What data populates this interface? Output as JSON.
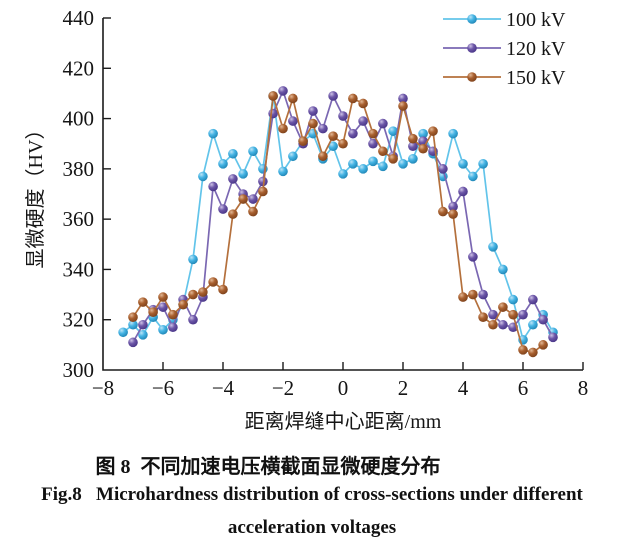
{
  "chart_data": {
    "type": "scatter",
    "title": "",
    "xlabel": "距离焊缝中心距离/mm",
    "ylabel": "显微硬度（HV）",
    "xlim": [
      -8,
      8
    ],
    "ylim": [
      300,
      440
    ],
    "xticks": [
      -8,
      -6,
      -4,
      -2,
      0,
      2,
      4,
      6,
      8
    ],
    "yticks": [
      300,
      320,
      340,
      360,
      380,
      400,
      420,
      440
    ],
    "grid": false,
    "axis_color": "#1a1a1a",
    "legend": {
      "position": "top-right",
      "entries": [
        "100 kV",
        "120 kV",
        "150 kV"
      ]
    },
    "series": [
      {
        "name": "100 kV",
        "colors": {
          "light": "#BCE4F6",
          "main": "#45B4E4",
          "dark": "#1E84B4",
          "line": "#62C4EA"
        },
        "x": [
          -7.33,
          -7,
          -6.67,
          -6.33,
          -6,
          -5.67,
          -5.33,
          -5,
          -4.67,
          -4.33,
          -4,
          -3.67,
          -3.33,
          -3,
          -2.67,
          -2.33,
          -2,
          -1.67,
          -1.33,
          -1,
          -0.67,
          -0.33,
          0,
          0.33,
          0.67,
          1,
          1.33,
          1.67,
          2,
          2.33,
          2.67,
          3,
          3.33,
          3.67,
          4,
          4.33,
          4.67,
          5,
          5.33,
          5.67,
          6,
          6.33,
          6.67,
          7
        ],
        "y": [
          315,
          318,
          314,
          321,
          316,
          320,
          326,
          344,
          377,
          394,
          382,
          386,
          378,
          387,
          380,
          409,
          379,
          385,
          391,
          394,
          384,
          389,
          378,
          382,
          380,
          383,
          381,
          395,
          382,
          384,
          394,
          386,
          377,
          394,
          382,
          377,
          382,
          349,
          340,
          328,
          312,
          318,
          322,
          315
        ]
      },
      {
        "name": "120 kV",
        "colors": {
          "light": "#CDC2E6",
          "main": "#6D57A8",
          "dark": "#473486",
          "line": "#7A67B2"
        },
        "x": [
          -7,
          -6.67,
          -6.33,
          -6,
          -5.67,
          -5.33,
          -5,
          -4.67,
          -4.33,
          -4,
          -3.67,
          -3.33,
          -3,
          -2.67,
          -2.33,
          -2,
          -1.67,
          -1.33,
          -1,
          -0.67,
          -0.33,
          0,
          0.33,
          0.67,
          1,
          1.33,
          1.67,
          2,
          2.33,
          2.67,
          3,
          3.33,
          3.67,
          4,
          4.33,
          4.67,
          5,
          5.33,
          5.67,
          6,
          6.33,
          6.67,
          7
        ],
        "y": [
          311,
          318,
          324,
          325,
          317,
          328,
          320,
          329,
          373,
          364,
          376,
          370,
          368,
          375,
          402,
          411,
          399,
          390,
          403,
          396,
          409,
          401,
          394,
          399,
          390,
          398,
          385,
          408,
          389,
          391,
          387,
          380,
          365,
          371,
          345,
          330,
          322,
          318,
          317,
          322,
          328,
          320,
          313
        ]
      },
      {
        "name": "150 kV",
        "colors": {
          "light": "#E2B794",
          "main": "#A9602F",
          "dark": "#7C411B",
          "line": "#B4703C"
        },
        "x": [
          -7,
          -6.67,
          -6.33,
          -6,
          -5.67,
          -5.33,
          -5,
          -4.67,
          -4.33,
          -4,
          -3.67,
          -3.33,
          -3,
          -2.67,
          -2.33,
          -2,
          -1.67,
          -1.33,
          -1,
          -0.67,
          -0.33,
          0,
          0.33,
          0.67,
          1,
          1.33,
          1.67,
          2,
          2.33,
          2.67,
          3,
          3.33,
          3.67,
          4,
          4.33,
          4.67,
          5,
          5.33,
          5.67,
          6,
          6.33,
          6.67
        ],
        "y": [
          321,
          327,
          323,
          329,
          322,
          326,
          330,
          331,
          335,
          332,
          362,
          368,
          363,
          371,
          409,
          396,
          408,
          391,
          398,
          385,
          393,
          390,
          408,
          406,
          394,
          387,
          384,
          405,
          392,
          388,
          395,
          363,
          362,
          329,
          330,
          321,
          318,
          325,
          322,
          308,
          307,
          310
        ]
      }
    ]
  },
  "captions": {
    "chinese": "图 8  不同加速电压横截面显微硬度分布",
    "english_line1": "Fig.8   Microhardness distribution of cross-sections under different",
    "english_line2": "acceleration voltages"
  }
}
